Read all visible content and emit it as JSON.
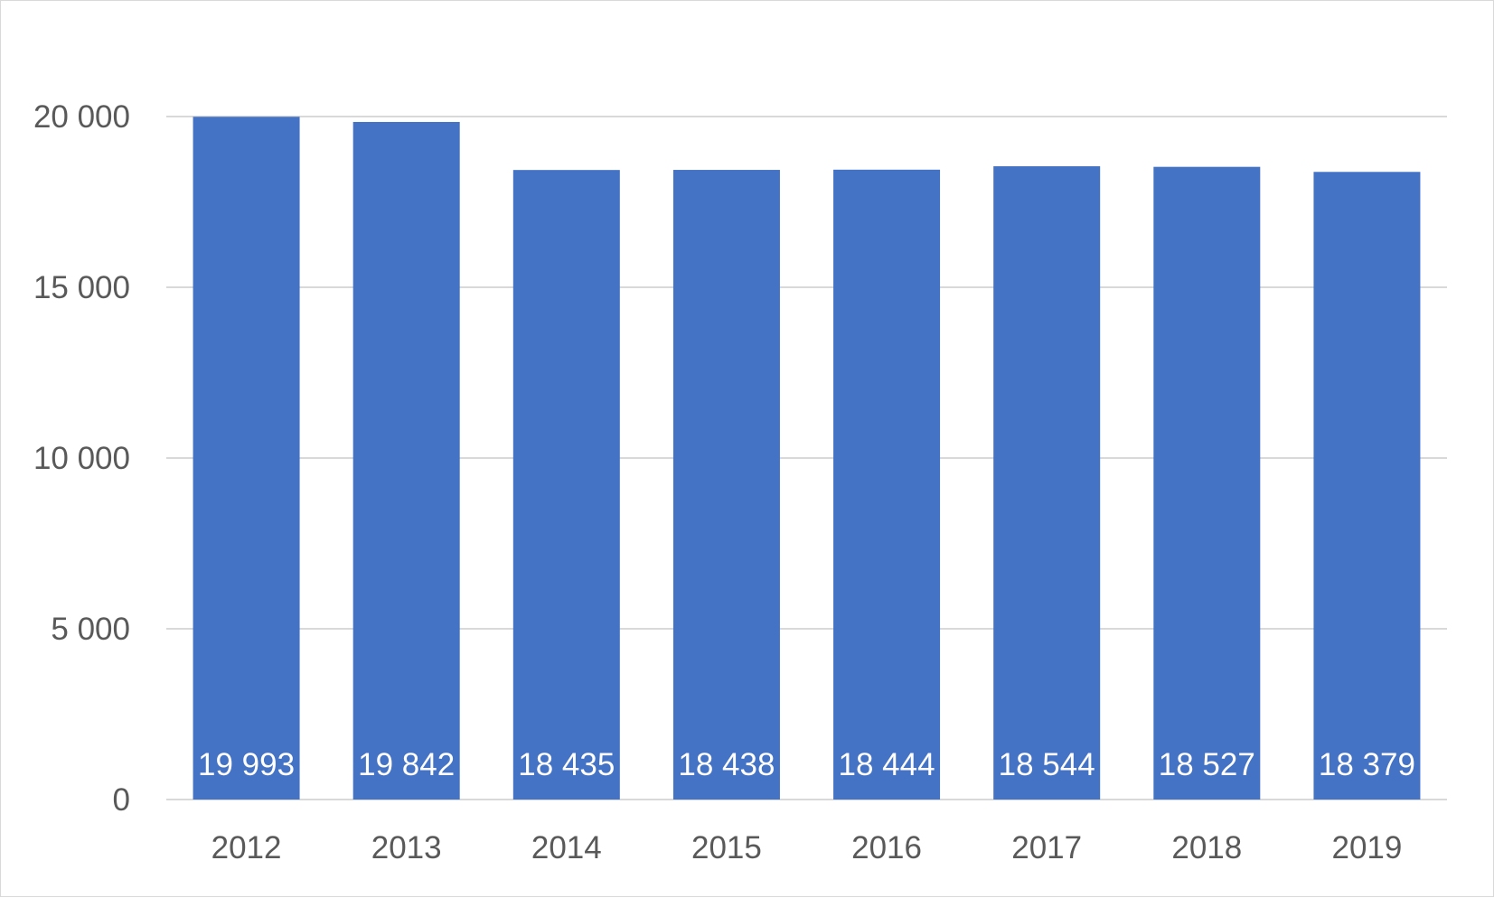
{
  "chart_data": {
    "type": "bar",
    "categories": [
      "2012",
      "2013",
      "2014",
      "2015",
      "2016",
      "2017",
      "2018",
      "2019"
    ],
    "values": [
      19993,
      19842,
      18435,
      18438,
      18444,
      18544,
      18527,
      18379
    ],
    "data_labels": [
      "19 993",
      "19 842",
      "18 435",
      "18 438",
      "18 444",
      "18 544",
      "18 527",
      "18 379"
    ],
    "y_ticks": [
      0,
      5000,
      10000,
      15000,
      20000
    ],
    "y_tick_labels": [
      "0",
      "5 000",
      "10 000",
      "15 000",
      "20 000"
    ],
    "ylim": [
      0,
      20000
    ],
    "grid": true,
    "legend": "none",
    "colors": {
      "bar": "#4472C4",
      "gridline": "#d9d9d9",
      "tick_text": "#595959",
      "data_label_text": "#ffffff"
    }
  }
}
